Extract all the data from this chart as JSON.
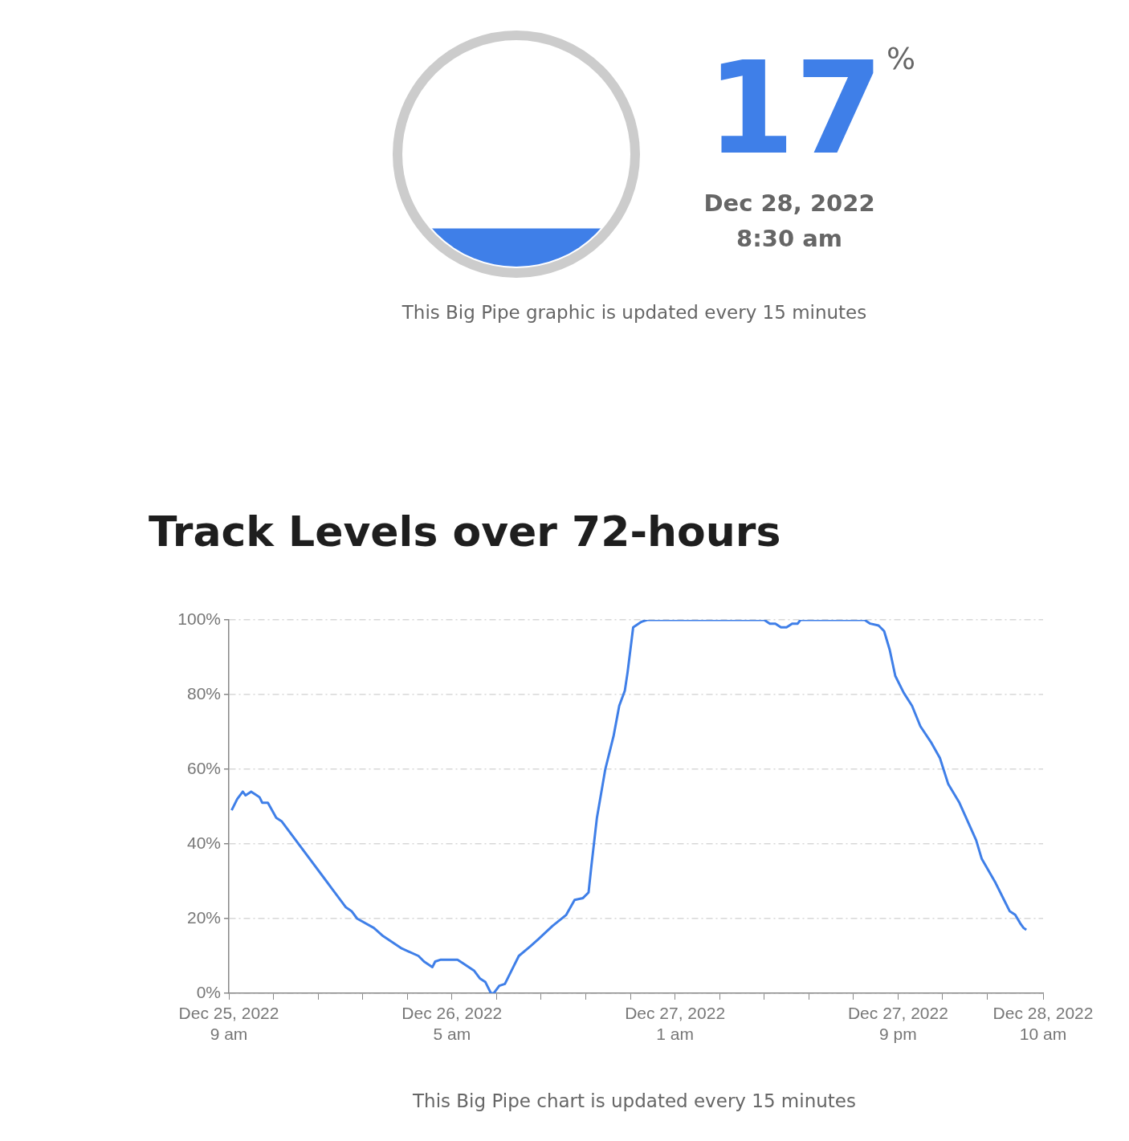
{
  "chart_data": [
    {
      "type": "other",
      "values": [
        17
      ],
      "value_labels": [
        "17$^{%}$"
      ],
      "color": "#3f7fe8",
      "annotations": [
        "Dec 28, 2022",
        "8:30 am",
        "This Big Pipe graphic is updated every 15 minutes"
      ]
    },
    {
      "type": "line",
      "title": "Track Levels over 72-hours",
      "color": "#3f7fe8",
      "x": [
        "2022-12-25T09:15",
        "2022-12-25T09:45",
        "2022-12-25T10:15",
        "2022-12-25T10:30",
        "2022-12-25T11:00",
        "2022-12-25T11:30",
        "2022-12-25T11:45",
        "2022-12-25T12:00",
        "2022-12-25T12:30",
        "2022-12-25T13:15",
        "2022-12-25T13:45",
        "2022-12-25T17:45",
        "2022-12-25T18:15",
        "2022-12-25T19:30",
        "2022-12-25T20:00",
        "2022-12-25T20:30",
        "2022-12-25T22:00",
        "2022-12-25T22:45",
        "2022-12-26T00:30",
        "2022-12-26T02:00",
        "2022-12-26T02:30",
        "2022-12-26T03:15",
        "2022-12-26T03:30",
        "2022-12-26T04:00",
        "2022-12-26T05:30",
        "2022-12-26T06:00",
        "2022-12-26T07:00",
        "2022-12-26T07:30",
        "2022-12-26T08:00",
        "2022-12-26T08:30",
        "2022-12-26T08:45",
        "2022-12-26T09:15",
        "2022-12-26T09:45",
        "2022-12-26T10:30",
        "2022-12-26T11:00",
        "2022-12-26T12:00",
        "2022-12-26T12:45",
        "2022-12-26T14:00",
        "2022-12-26T15:15",
        "2022-12-26T16:00",
        "2022-12-26T16:45",
        "2022-12-26T17:15",
        "2022-12-26T17:30",
        "2022-12-26T18:00",
        "2022-12-26T18:45",
        "2022-12-26T19:30",
        "2022-12-26T20:00",
        "2022-12-26T20:30",
        "2022-12-26T20:45",
        "2022-12-26T21:15",
        "2022-12-26T22:00",
        "2022-12-26T22:30",
        "2022-12-27T09:00",
        "2022-12-27T09:30",
        "2022-12-27T10:00",
        "2022-12-27T10:30",
        "2022-12-27T11:00",
        "2022-12-27T11:30",
        "2022-12-27T12:00",
        "2022-12-27T12:15",
        "2022-12-27T18:00",
        "2022-12-27T18:30",
        "2022-12-27T19:15",
        "2022-12-27T19:45",
        "2022-12-27T20:15",
        "2022-12-27T20:45",
        "2022-12-27T21:30",
        "2022-12-27T22:15",
        "2022-12-27T23:00",
        "2022-12-28T00:00",
        "2022-12-28T00:45",
        "2022-12-28T01:30",
        "2022-12-28T02:30",
        "2022-12-28T03:15",
        "2022-12-28T04:00",
        "2022-12-28T04:30",
        "2022-12-28T05:45",
        "2022-12-28T06:30",
        "2022-12-28T07:00",
        "2022-12-28T07:30",
        "2022-12-28T08:00",
        "2022-12-28T08:15",
        "2022-12-28T08:30"
      ],
      "values": [
        49,
        52,
        54,
        53,
        54,
        53,
        52.5,
        51,
        51,
        47,
        46,
        30,
        28,
        23,
        22,
        20,
        17.5,
        15.5,
        12,
        10,
        8.5,
        7,
        8.5,
        9,
        9,
        8,
        6,
        4,
        3,
        0,
        0,
        2,
        2.5,
        7,
        10,
        12.5,
        14.5,
        18,
        21,
        25,
        25.5,
        27,
        34,
        47,
        60,
        69,
        77,
        81,
        86,
        98,
        99.5,
        100,
        100,
        99,
        99,
        98,
        98,
        99,
        99,
        100,
        100,
        99,
        98.5,
        97,
        92,
        85,
        80.5,
        77,
        71.5,
        67,
        63,
        56,
        51,
        46,
        41,
        36,
        29.5,
        25,
        22,
        21,
        18.5,
        17.5,
        17
      ],
      "xlim": [
        "2022-12-25T09:00",
        "2022-12-28T10:00"
      ],
      "xticks": [
        {
          "value": "2022-12-25T09:00",
          "label": "Dec 25, 2022\n9 am"
        },
        {
          "value": "2022-12-25T13:00",
          "label": null
        },
        {
          "value": "2022-12-25T17:00",
          "label": null
        },
        {
          "value": "2022-12-25T21:00",
          "label": null
        },
        {
          "value": "2022-12-26T01:00",
          "label": null
        },
        {
          "value": "2022-12-26T05:00",
          "label": "Dec 26, 2022\n5 am"
        },
        {
          "value": "2022-12-26T09:00",
          "label": null
        },
        {
          "value": "2022-12-26T13:00",
          "label": null
        },
        {
          "value": "2022-12-26T17:00",
          "label": null
        },
        {
          "value": "2022-12-26T21:00",
          "label": null
        },
        {
          "value": "2022-12-27T01:00",
          "label": "Dec 27, 2022\n1 am"
        },
        {
          "value": "2022-12-27T05:00",
          "label": null
        },
        {
          "value": "2022-12-27T09:00",
          "label": null
        },
        {
          "value": "2022-12-27T13:00",
          "label": null
        },
        {
          "value": "2022-12-27T17:00",
          "label": null
        },
        {
          "value": "2022-12-27T21:00",
          "label": "Dec 27, 2022\n9 pm"
        },
        {
          "value": "2022-12-28T01:00",
          "label": null
        },
        {
          "value": "2022-12-28T05:00",
          "label": null
        },
        {
          "value": "2022-12-28T10:00",
          "label": "Dec 28, 2022\n10 am"
        }
      ],
      "ylim": [
        0,
        100
      ],
      "yticks": [
        {
          "value": 0,
          "label": "0%"
        },
        {
          "value": 20,
          "label": "20%"
        },
        {
          "value": 40,
          "label": "40%"
        },
        {
          "value": 60,
          "label": "60%"
        },
        {
          "value": 80,
          "label": "80%"
        },
        {
          "value": 100,
          "label": "100%"
        }
      ],
      "grid": "y",
      "annotations": [
        "This Big Pipe chart is updated every 15 minutes"
      ]
    }
  ]
}
